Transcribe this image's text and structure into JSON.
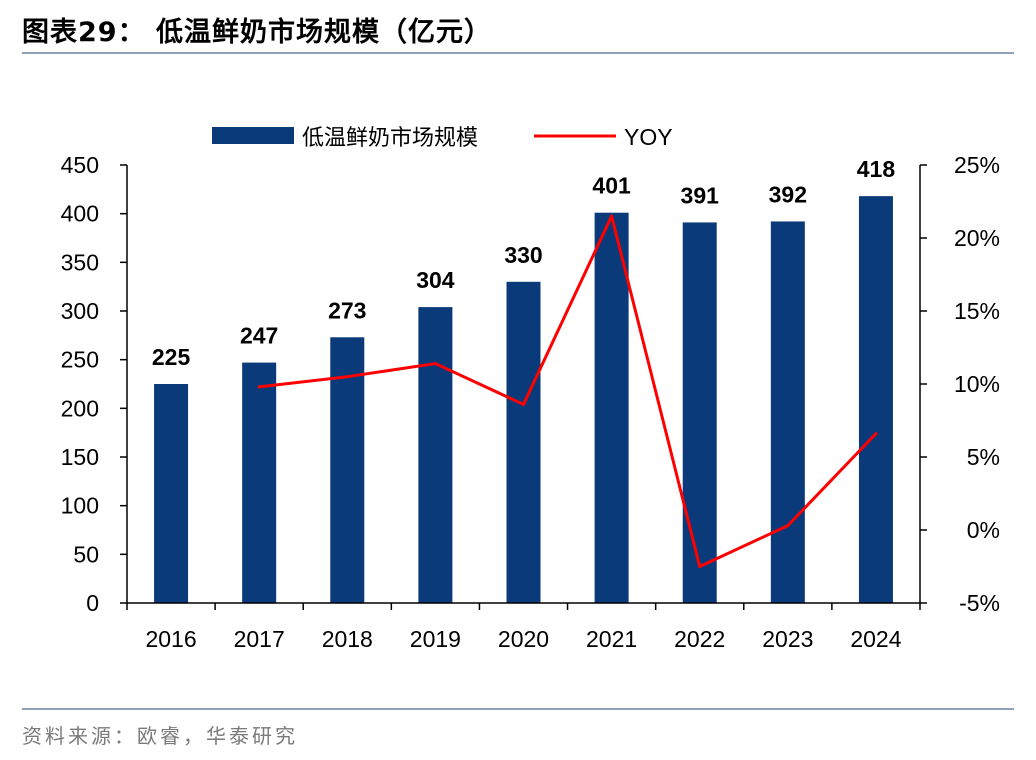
{
  "header": {
    "title": "图表29：  低温鲜奶市场规模（亿元）"
  },
  "footer": {
    "source": "资料来源：欧睿，华泰研究"
  },
  "colors": {
    "bar": "#0B3A7A",
    "line": "#FF0000",
    "rule": "#8EA2B8"
  },
  "chart_data": {
    "type": "bar",
    "categories": [
      "2016",
      "2017",
      "2018",
      "2019",
      "2020",
      "2021",
      "2022",
      "2023",
      "2024"
    ],
    "series": [
      {
        "name": "低温鲜奶市场规模",
        "type": "bar",
        "axis": "left",
        "values": [
          225,
          247,
          273,
          304,
          330,
          401,
          391,
          392,
          418
        ]
      },
      {
        "name": "YOY",
        "type": "line",
        "axis": "right",
        "values": [
          null,
          9.8,
          10.5,
          11.4,
          8.6,
          21.5,
          -2.5,
          0.3,
          6.6
        ]
      }
    ],
    "y_left": {
      "range": [
        0,
        450
      ],
      "ticks": [
        "0",
        "50",
        "100",
        "150",
        "200",
        "250",
        "300",
        "350",
        "400",
        "450"
      ]
    },
    "y_right": {
      "range": [
        -5,
        25
      ],
      "ticks": [
        "-5%",
        "0%",
        "5%",
        "10%",
        "15%",
        "20%",
        "25%"
      ]
    },
    "data_labels": [
      "225",
      "247",
      "273",
      "304",
      "330",
      "401",
      "391",
      "392",
      "418"
    ],
    "legend_position": "top-center",
    "grid": false
  }
}
